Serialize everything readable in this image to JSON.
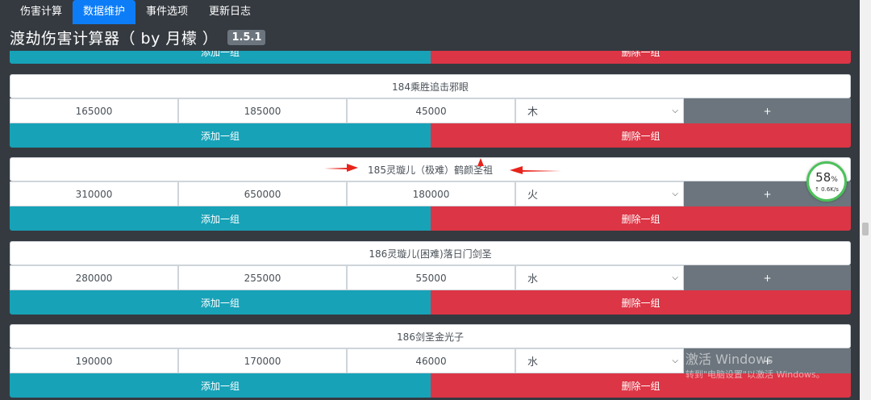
{
  "nav": {
    "tabs": [
      {
        "label": "伤害计算",
        "active": false
      },
      {
        "label": "数据维护",
        "active": true
      },
      {
        "label": "事件选项",
        "active": false
      },
      {
        "label": "更新日志",
        "active": false
      }
    ]
  },
  "header": {
    "title": "渡劫伤害计算器（ by 月檬 ）",
    "version": "1.5.1"
  },
  "partial_group": {
    "add_label": "添加一组",
    "delete_label": "删除一组"
  },
  "groups": [
    {
      "name": "184乘胜追击邪眼",
      "v1": "165000",
      "v2": "185000",
      "v3": "45000",
      "element": "木",
      "plus": "+",
      "add_label": "添加一组",
      "delete_label": "删除一组"
    },
    {
      "name": "185灵璇儿（极难）鹤颜圣祖",
      "v1": "310000",
      "v2": "650000",
      "v3": "180000",
      "element": "火",
      "plus": "+",
      "add_label": "添加一组",
      "delete_label": "删除一组"
    },
    {
      "name": "186灵璇儿(困难)落日门剑圣",
      "v1": "280000",
      "v2": "255000",
      "v3": "55000",
      "element": "水",
      "plus": "+",
      "add_label": "添加一组",
      "delete_label": "删除一组"
    },
    {
      "name": "186剑圣金光子",
      "v1": "190000",
      "v2": "170000",
      "v3": "46000",
      "element": "水",
      "plus": "+",
      "add_label": "添加一组",
      "delete_label": "删除一组"
    }
  ],
  "net_widget": {
    "percent": "58",
    "percent_unit": "%",
    "speed": "↑ 0.6K/s"
  },
  "watermark": {
    "line1": "激活 Windows",
    "line2": "转到\"电脑设置\"以激活 Windows。"
  },
  "colors": {
    "primary": "#0d7df7",
    "info": "#17a2b8",
    "danger": "#dc3545",
    "secondary": "#6c757d",
    "background": "#353a40",
    "annotation": "#e8231b"
  }
}
